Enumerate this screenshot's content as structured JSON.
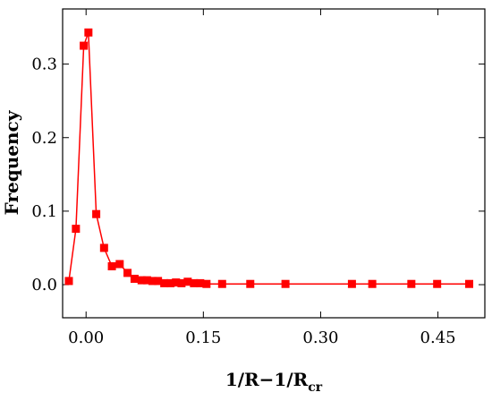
{
  "chart_data": {
    "type": "line",
    "xlabel_main": "1/R−1/R",
    "xlabel_sub": "cr",
    "ylabel": "Frequency",
    "xlim": [
      -0.03,
      0.51
    ],
    "ylim": [
      -0.045,
      0.375
    ],
    "xticks": [
      0.0,
      0.15,
      0.3,
      0.45
    ],
    "xtick_labels": [
      "0.00",
      "0.15",
      "0.30",
      "0.45"
    ],
    "yticks": [
      0.0,
      0.1,
      0.2,
      0.3
    ],
    "ytick_labels": [
      "0.0",
      "0.1",
      "0.2",
      "0.3"
    ],
    "grid": false,
    "series": [
      {
        "color": "#ff0000",
        "marker": "square",
        "x": [
          -0.022,
          -0.013,
          -0.003,
          0.003,
          0.013,
          0.023,
          0.033,
          0.043,
          0.053,
          0.062,
          0.071,
          0.078,
          0.085,
          0.092,
          0.1,
          0.108,
          0.115,
          0.122,
          0.13,
          0.138,
          0.146,
          0.154,
          0.174,
          0.21,
          0.255,
          0.34,
          0.366,
          0.416,
          0.449,
          0.49
        ],
        "y": [
          0.005,
          0.076,
          0.325,
          0.343,
          0.096,
          0.05,
          0.025,
          0.028,
          0.016,
          0.008,
          0.006,
          0.006,
          0.005,
          0.005,
          0.002,
          0.002,
          0.003,
          0.002,
          0.004,
          0.002,
          0.002,
          0.001,
          0.001,
          0.001,
          0.001,
          0.001,
          0.001,
          0.001,
          0.001,
          0.001
        ]
      }
    ]
  }
}
